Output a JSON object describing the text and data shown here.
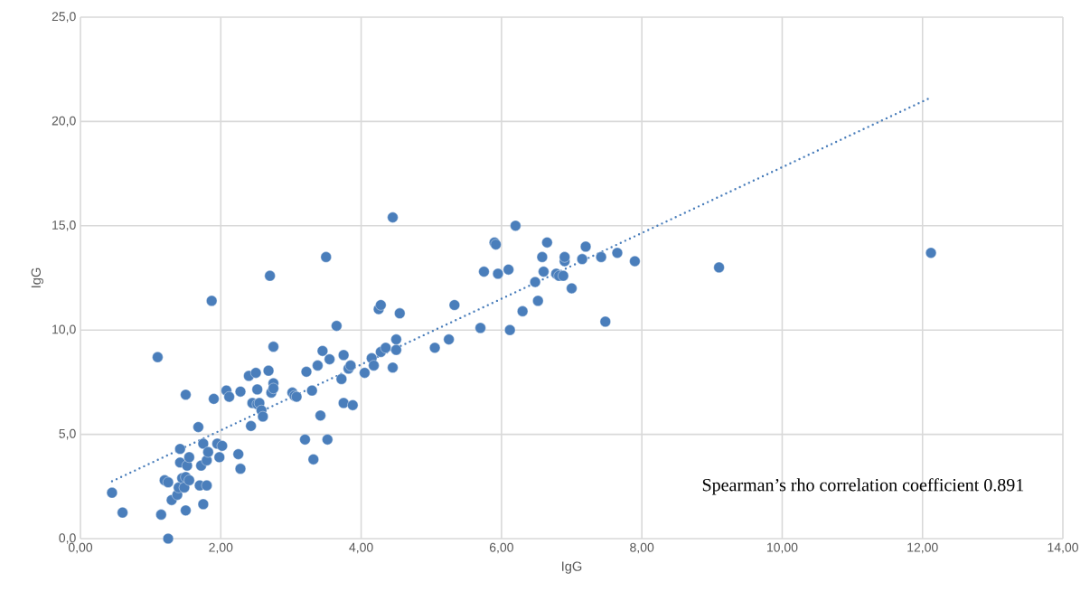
{
  "chart_data": {
    "type": "scatter",
    "xlabel": "IgG",
    "ylabel": "IgG",
    "annotations": [
      "Spearman’s rho correlation coefficient 0.891"
    ],
    "xlim": [
      0,
      14
    ],
    "ylim": [
      0,
      25
    ],
    "xticks": [
      {
        "value": 0,
        "label": "0,00"
      },
      {
        "value": 2,
        "label": "2,00"
      },
      {
        "value": 4,
        "label": "4,00"
      },
      {
        "value": 6,
        "label": "6,00"
      },
      {
        "value": 8,
        "label": "8,00"
      },
      {
        "value": 10,
        "label": "10,00"
      },
      {
        "value": 12,
        "label": "12,00"
      },
      {
        "value": 14,
        "label": "14,00"
      }
    ],
    "yticks": [
      {
        "value": 0,
        "label": "0,0"
      },
      {
        "value": 5,
        "label": "5,0"
      },
      {
        "value": 10,
        "label": "10,0"
      },
      {
        "value": 15,
        "label": "15,0"
      },
      {
        "value": 20,
        "label": "20,0"
      },
      {
        "value": 25,
        "label": "25,0"
      }
    ],
    "grid": true,
    "series": [
      {
        "color": "#4a7ebb",
        "marker": "circle",
        "x": [
          0.45,
          0.6,
          1.1,
          1.15,
          1.2,
          1.25,
          1.25,
          1.3,
          1.38,
          1.4,
          1.42,
          1.42,
          1.45,
          1.48,
          1.5,
          1.5,
          1.5,
          1.52,
          1.55,
          1.55,
          1.68,
          1.7,
          1.72,
          1.75,
          1.75,
          1.8,
          1.8,
          1.82,
          1.87,
          1.9,
          1.95,
          1.98,
          2.02,
          2.08,
          2.12,
          2.25,
          2.28,
          2.28,
          2.4,
          2.43,
          2.45,
          2.5,
          2.52,
          2.52,
          2.55,
          2.58,
          2.6,
          2.68,
          2.7,
          2.72,
          2.75,
          2.75,
          2.75,
          3.02,
          3.05,
          3.08,
          3.2,
          3.22,
          3.3,
          3.32,
          3.38,
          3.42,
          3.45,
          3.5,
          3.52,
          3.55,
          3.65,
          3.72,
          3.75,
          3.75,
          3.82,
          3.85,
          3.88,
          4.05,
          4.15,
          4.18,
          4.25,
          4.28,
          4.28,
          4.35,
          4.45,
          4.45,
          4.5,
          4.5,
          4.55,
          5.05,
          5.25,
          5.33,
          5.7,
          5.75,
          5.9,
          5.92,
          5.95,
          6.1,
          6.12,
          6.2,
          6.3,
          6.48,
          6.52,
          6.58,
          6.6,
          6.65,
          6.78,
          6.82,
          6.88,
          6.9,
          6.9,
          7.0,
          7.15,
          7.2,
          7.42,
          7.48,
          7.65,
          7.9,
          9.1,
          12.12
        ],
        "values": [
          2.2,
          1.25,
          8.7,
          1.15,
          2.8,
          2.7,
          0.0,
          1.85,
          2.1,
          2.45,
          3.65,
          4.3,
          2.9,
          2.45,
          2.95,
          1.35,
          6.9,
          3.5,
          3.9,
          2.8,
          5.35,
          2.55,
          3.5,
          4.55,
          1.65,
          3.75,
          2.55,
          4.15,
          11.4,
          6.7,
          4.55,
          3.9,
          4.45,
          7.1,
          6.8,
          4.05,
          3.35,
          7.05,
          7.8,
          5.4,
          6.5,
          7.95,
          7.15,
          6.45,
          6.5,
          6.15,
          5.85,
          8.05,
          12.6,
          7.0,
          7.45,
          9.2,
          7.2,
          7.0,
          6.85,
          6.8,
          4.75,
          8.0,
          7.1,
          3.8,
          8.3,
          5.9,
          9.0,
          13.5,
          4.75,
          8.6,
          10.2,
          7.65,
          6.5,
          8.8,
          8.15,
          8.3,
          6.4,
          7.95,
          8.65,
          8.3,
          11.0,
          8.95,
          11.2,
          9.15,
          15.4,
          8.2,
          9.55,
          9.05,
          10.8,
          9.15,
          9.55,
          11.2,
          10.1,
          12.8,
          14.2,
          14.1,
          12.7,
          12.9,
          10.0,
          15.0,
          10.9,
          12.3,
          11.4,
          13.5,
          12.8,
          14.2,
          12.7,
          12.6,
          12.6,
          13.3,
          13.5,
          12.0,
          13.4,
          14.0,
          13.5,
          10.4,
          13.7,
          13.3,
          13.0,
          13.7
        ]
      },
      {
        "type": "line",
        "color": "#4a7ebb",
        "line_style": "dotted",
        "marker": "none",
        "x": [
          0.45,
          12.12
        ],
        "values": [
          2.75,
          21.15
        ]
      }
    ]
  }
}
